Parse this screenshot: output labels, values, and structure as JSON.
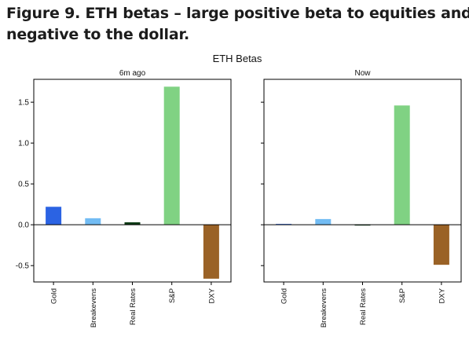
{
  "heading": {
    "line1": "Figure 9. ETH betas – large positive beta to equities and",
    "line2": "negative to the dollar."
  },
  "chart_data": {
    "type": "bar",
    "title": "ETH Betas",
    "categories": [
      "Gold",
      "Breakevens",
      "Real Rates",
      "S&P",
      "DXY"
    ],
    "bar_colors": [
      "#2b63e3",
      "#72bcf3",
      "#0c3a14",
      "#80d283",
      "#9a6226"
    ],
    "grid": false,
    "ylim": [
      -0.7,
      1.78
    ],
    "yticks": [
      -0.5,
      0.0,
      0.5,
      1.0,
      1.5
    ],
    "ytick_labels": [
      "-0.5",
      "0.0",
      "0.5",
      "1.0",
      "1.5"
    ],
    "shared_y": true,
    "panels": [
      {
        "subtitle": "6m ago",
        "values": [
          0.22,
          0.08,
          0.03,
          1.69,
          -0.66
        ]
      },
      {
        "subtitle": "Now",
        "values": [
          0.01,
          0.07,
          0.0,
          1.46,
          -0.49
        ]
      }
    ]
  }
}
